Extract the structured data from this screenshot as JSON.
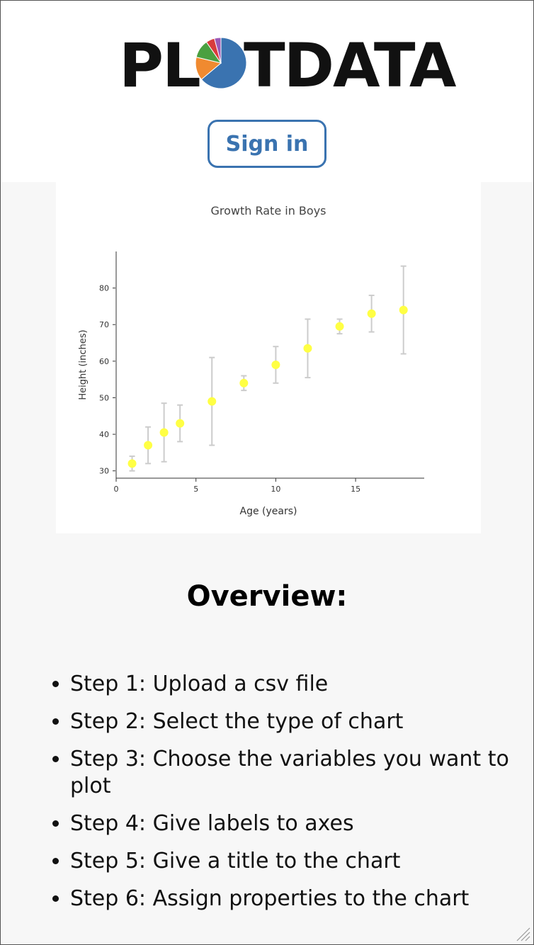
{
  "header": {
    "logo": {
      "left": "PL",
      "right": "TDATA",
      "pie_icon": "pie-chart-icon"
    },
    "signin_label": "Sign in"
  },
  "colors": {
    "accent": "#3a73b0",
    "marker": "#ffff44",
    "error_bar": "#cccccc",
    "pie": [
      "#3a73b0",
      "#f08a30",
      "#4aa040",
      "#d83c3c",
      "#9b59b6"
    ]
  },
  "chart_data": {
    "type": "scatter",
    "title": "Growth Rate in Boys",
    "xlabel": "Age (years)",
    "ylabel": "Height (inches)",
    "xlim": [
      0,
      19.3
    ],
    "ylim": [
      28,
      90
    ],
    "xticks": [
      0,
      5,
      10,
      15
    ],
    "yticks": [
      30,
      40,
      50,
      60,
      70,
      80
    ],
    "grid": false,
    "points": [
      {
        "x": 1,
        "y": 32,
        "err_low": 30,
        "err_high": 34
      },
      {
        "x": 2,
        "y": 37,
        "err_low": 32,
        "err_high": 42
      },
      {
        "x": 3,
        "y": 40.5,
        "err_low": 32.5,
        "err_high": 48.5
      },
      {
        "x": 4,
        "y": 43,
        "err_low": 38,
        "err_high": 48
      },
      {
        "x": 6,
        "y": 49,
        "err_low": 37,
        "err_high": 61
      },
      {
        "x": 8,
        "y": 54,
        "err_low": 52,
        "err_high": 56
      },
      {
        "x": 10,
        "y": 59,
        "err_low": 54,
        "err_high": 64
      },
      {
        "x": 12,
        "y": 63.5,
        "err_low": 55.5,
        "err_high": 71.5
      },
      {
        "x": 14,
        "y": 69.5,
        "err_low": 67.5,
        "err_high": 71.5
      },
      {
        "x": 16,
        "y": 73,
        "err_low": 68,
        "err_high": 78
      },
      {
        "x": 18,
        "y": 74,
        "err_low": 62,
        "err_high": 86
      }
    ]
  },
  "overview": {
    "title": "Overview:",
    "steps": [
      "Step 1: Upload a csv file",
      "Step 2: Select the type of chart",
      "Step 3: Choose the variables you want to plot",
      "Step 4: Give labels to axes",
      "Step 5: Give a title to the chart",
      "Step 6: Assign properties to the chart"
    ]
  }
}
